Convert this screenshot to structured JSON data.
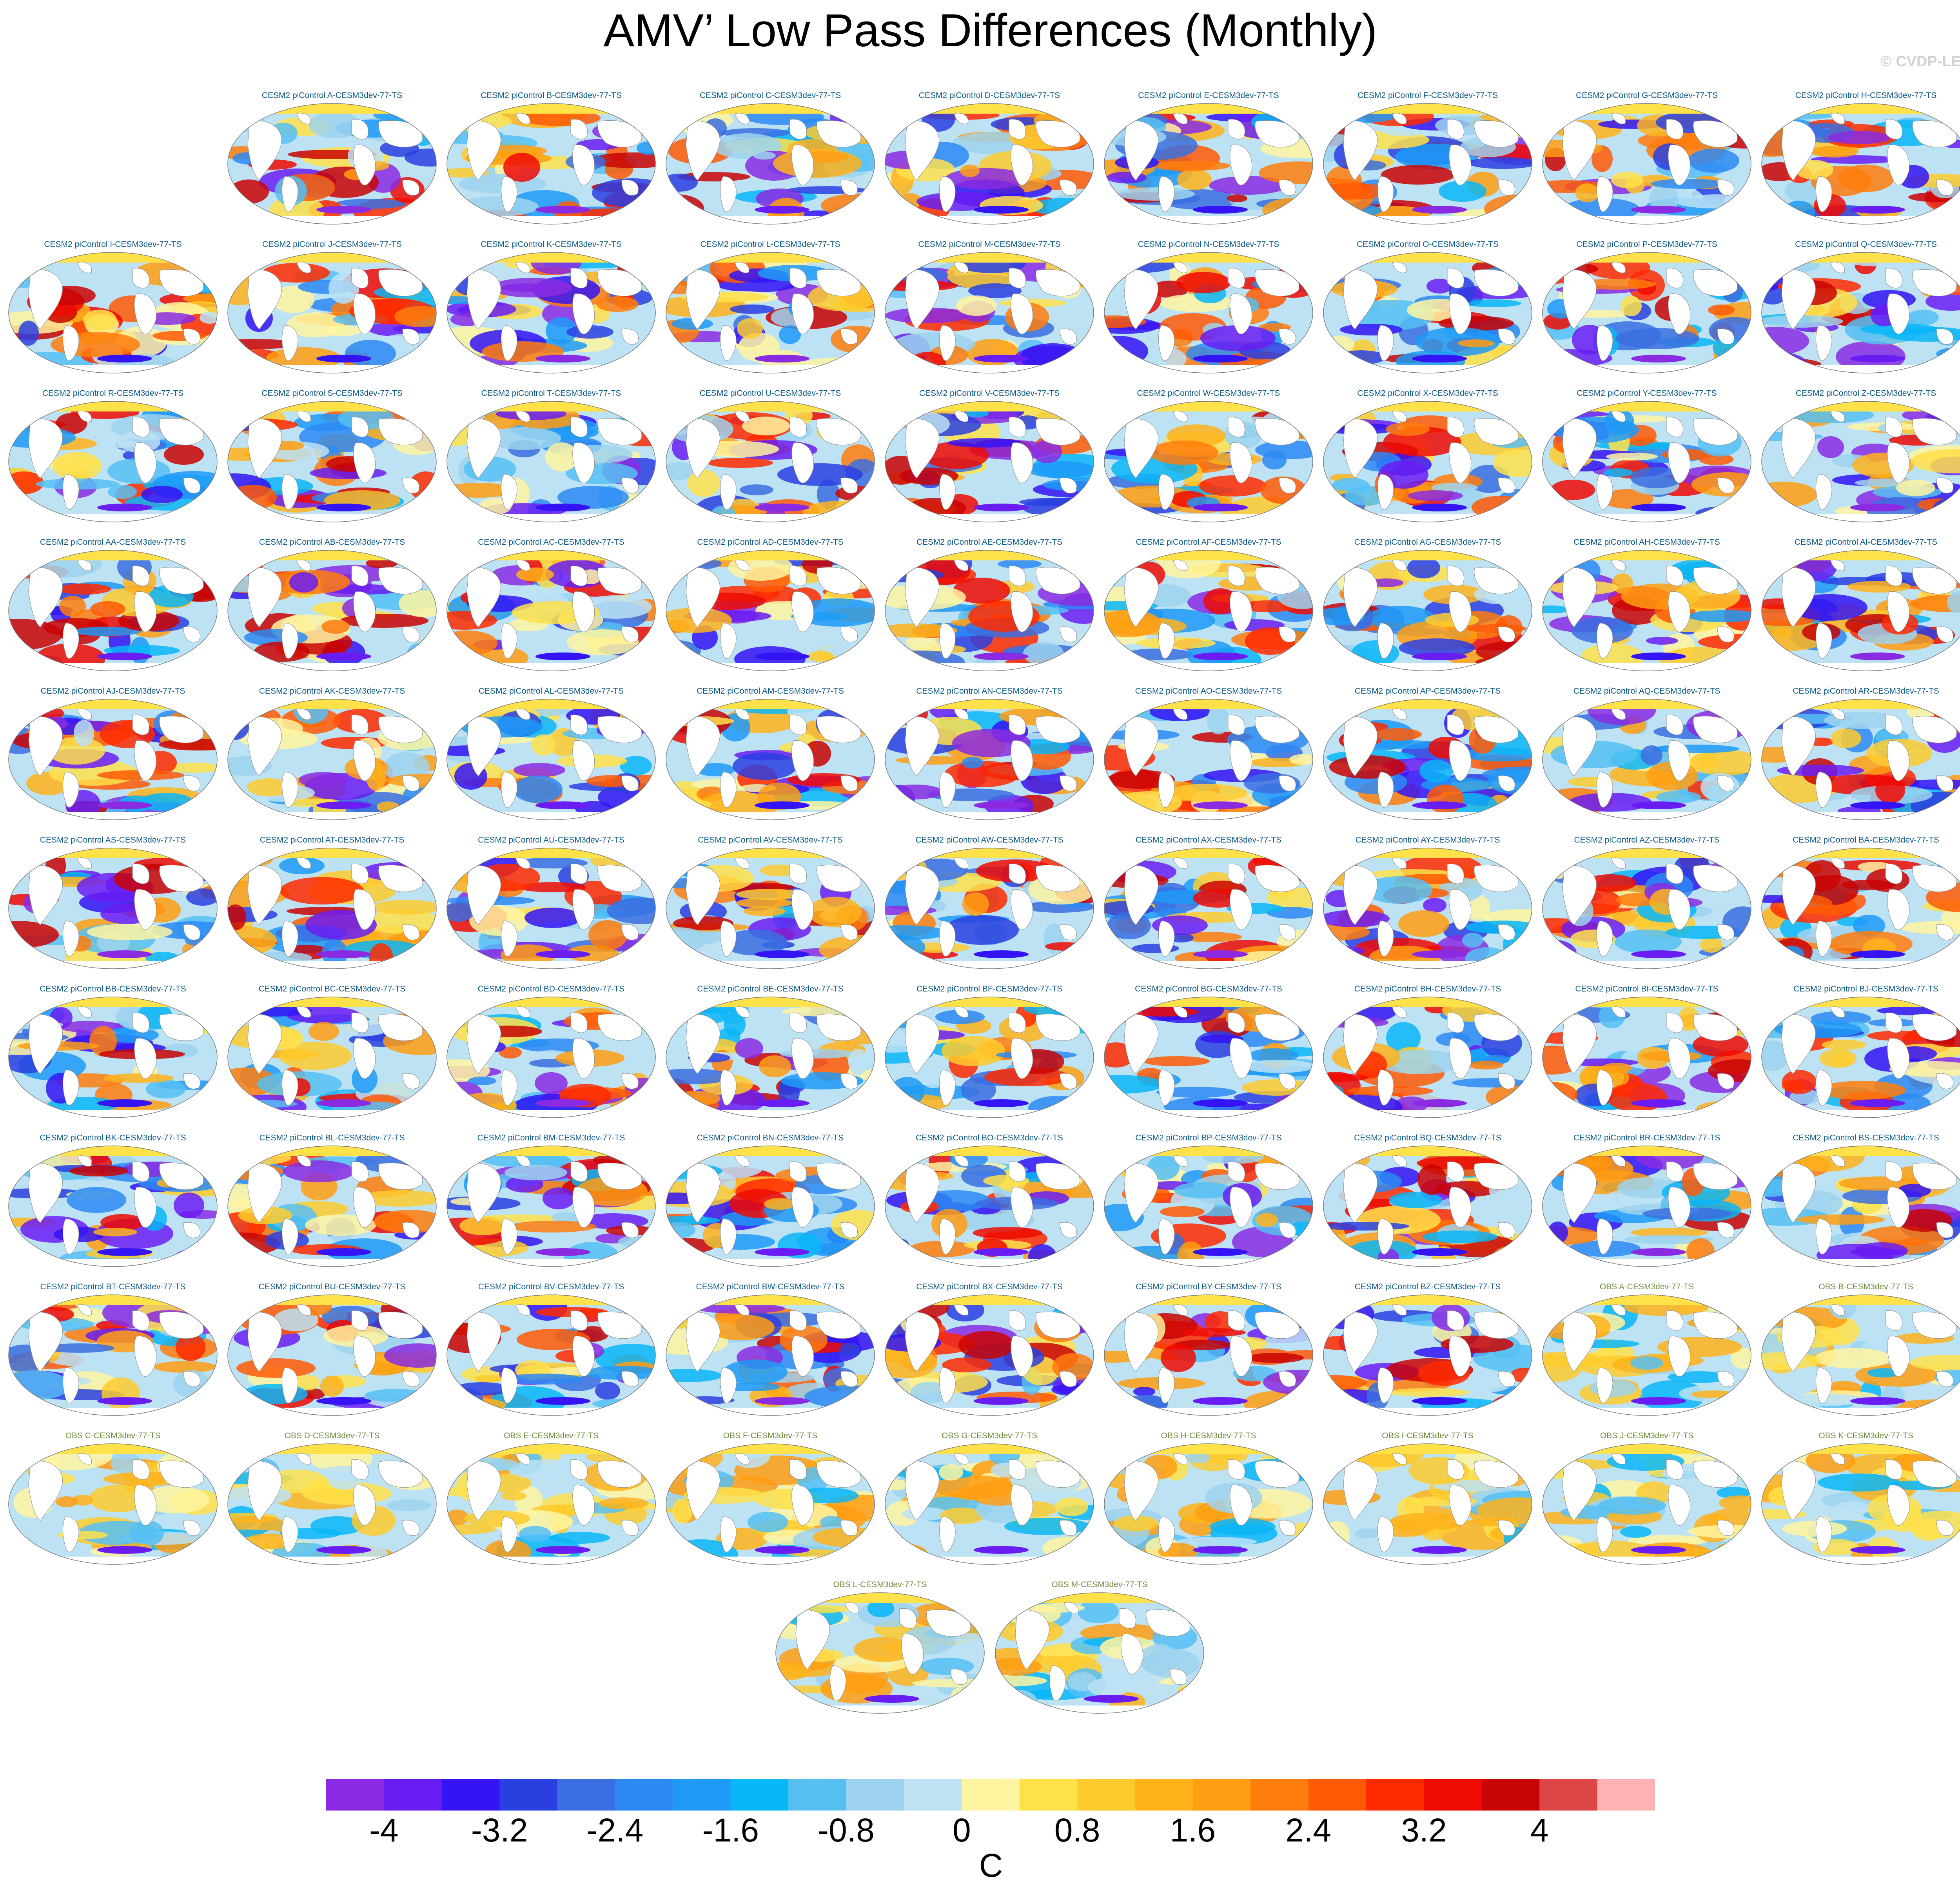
{
  "title": "AMV’ Low Pass Differences (Monthly)",
  "copyright": "© CVDP-LE",
  "panels": [
    "CESM2 piControl A-CESM3dev-77-TS",
    "CESM2 piControl B-CESM3dev-77-TS",
    "CESM2 piControl C-CESM3dev-77-TS",
    "CESM2 piControl D-CESM3dev-77-TS",
    "CESM2 piControl E-CESM3dev-77-TS",
    "CESM2 piControl F-CESM3dev-77-TS",
    "CESM2 piControl G-CESM3dev-77-TS",
    "CESM2 piControl H-CESM3dev-77-TS",
    "CESM2 piControl I-CESM3dev-77-TS",
    "CESM2 piControl J-CESM3dev-77-TS",
    "CESM2 piControl K-CESM3dev-77-TS",
    "CESM2 piControl L-CESM3dev-77-TS",
    "CESM2 piControl M-CESM3dev-77-TS",
    "CESM2 piControl N-CESM3dev-77-TS",
    "CESM2 piControl O-CESM3dev-77-TS",
    "CESM2 piControl P-CESM3dev-77-TS",
    "CESM2 piControl Q-CESM3dev-77-TS",
    "CESM2 piControl R-CESM3dev-77-TS",
    "CESM2 piControl S-CESM3dev-77-TS",
    "CESM2 piControl T-CESM3dev-77-TS",
    "CESM2 piControl U-CESM3dev-77-TS",
    "CESM2 piControl V-CESM3dev-77-TS",
    "CESM2 piControl W-CESM3dev-77-TS",
    "CESM2 piControl X-CESM3dev-77-TS",
    "CESM2 piControl Y-CESM3dev-77-TS",
    "CESM2 piControl Z-CESM3dev-77-TS",
    "CESM2 piControl AA-CESM3dev-77-TS",
    "CESM2 piControl AB-CESM3dev-77-TS",
    "CESM2 piControl AC-CESM3dev-77-TS",
    "CESM2 piControl AD-CESM3dev-77-TS",
    "CESM2 piControl AE-CESM3dev-77-TS",
    "CESM2 piControl AF-CESM3dev-77-TS",
    "CESM2 piControl AG-CESM3dev-77-TS",
    "CESM2 piControl AH-CESM3dev-77-TS",
    "CESM2 piControl AI-CESM3dev-77-TS",
    "CESM2 piControl AJ-CESM3dev-77-TS",
    "CESM2 piControl AK-CESM3dev-77-TS",
    "CESM2 piControl AL-CESM3dev-77-TS",
    "CESM2 piControl AM-CESM3dev-77-TS",
    "CESM2 piControl AN-CESM3dev-77-TS",
    "CESM2 piControl AO-CESM3dev-77-TS",
    "CESM2 piControl AP-CESM3dev-77-TS",
    "CESM2 piControl AQ-CESM3dev-77-TS",
    "CESM2 piControl AR-CESM3dev-77-TS",
    "CESM2 piControl AS-CESM3dev-77-TS",
    "CESM2 piControl AT-CESM3dev-77-TS",
    "CESM2 piControl AU-CESM3dev-77-TS",
    "CESM2 piControl AV-CESM3dev-77-TS",
    "CESM2 piControl AW-CESM3dev-77-TS",
    "CESM2 piControl AX-CESM3dev-77-TS",
    "CESM2 piControl AY-CESM3dev-77-TS",
    "CESM2 piControl AZ-CESM3dev-77-TS",
    "CESM2 piControl BA-CESM3dev-77-TS",
    "CESM2 piControl BB-CESM3dev-77-TS",
    "CESM2 piControl BC-CESM3dev-77-TS",
    "CESM2 piControl BD-CESM3dev-77-TS",
    "CESM2 piControl BE-CESM3dev-77-TS",
    "CESM2 piControl BF-CESM3dev-77-TS",
    "CESM2 piControl BG-CESM3dev-77-TS",
    "CESM2 piControl BH-CESM3dev-77-TS",
    "CESM2 piControl BI-CESM3dev-77-TS",
    "CESM2 piControl BJ-CESM3dev-77-TS",
    "CESM2 piControl BK-CESM3dev-77-TS",
    "CESM2 piControl BL-CESM3dev-77-TS",
    "CESM2 piControl BM-CESM3dev-77-TS",
    "CESM2 piControl BN-CESM3dev-77-TS",
    "CESM2 piControl BO-CESM3dev-77-TS",
    "CESM2 piControl BP-CESM3dev-77-TS",
    "CESM2 piControl BQ-CESM3dev-77-TS",
    "CESM2 piControl BR-CESM3dev-77-TS",
    "CESM2 piControl BS-CESM3dev-77-TS",
    "CESM2 piControl BT-CESM3dev-77-TS",
    "CESM2 piControl BU-CESM3dev-77-TS",
    "CESM2 piControl BV-CESM3dev-77-TS",
    "CESM2 piControl BW-CESM3dev-77-TS",
    "CESM2 piControl BX-CESM3dev-77-TS",
    "CESM2 piControl BY-CESM3dev-77-TS",
    "CESM2 piControl BZ-CESM3dev-77-TS",
    "OBS A-CESM3dev-77-TS",
    "OBS B-CESM3dev-77-TS",
    "OBS C-CESM3dev-77-TS",
    "OBS D-CESM3dev-77-TS",
    "OBS E-CESM3dev-77-TS",
    "OBS F-CESM3dev-77-TS",
    "OBS G-CESM3dev-77-TS",
    "OBS H-CESM3dev-77-TS",
    "OBS I-CESM3dev-77-TS",
    "OBS J-CESM3dev-77-TS",
    "OBS K-CESM3dev-77-TS",
    "OBS L-CESM3dev-77-TS",
    "OBS M-CESM3dev-77-TS"
  ],
  "colorbar": {
    "colors": [
      "#8a2be2",
      "#6a1df2",
      "#3414f5",
      "#2a3fe0",
      "#3b6ee0",
      "#2d8af5",
      "#1f9af7",
      "#09b6f7",
      "#56c0f3",
      "#9dd3ee",
      "#bce2f4",
      "#fff5a0",
      "#ffe14a",
      "#fecb2e",
      "#ffb31b",
      "#ff9e12",
      "#ff7d0c",
      "#ff5a06",
      "#ff2a00",
      "#ee0b03",
      "#c90404",
      "#dd4646",
      "#ffb2b4"
    ],
    "tick_labels": [
      "-4",
      "-3.2",
      "-2.4",
      "-1.6",
      "-0.8",
      "0",
      "0.8",
      "1.6",
      "2.4",
      "3.2",
      "4"
    ],
    "units": "C"
  }
}
